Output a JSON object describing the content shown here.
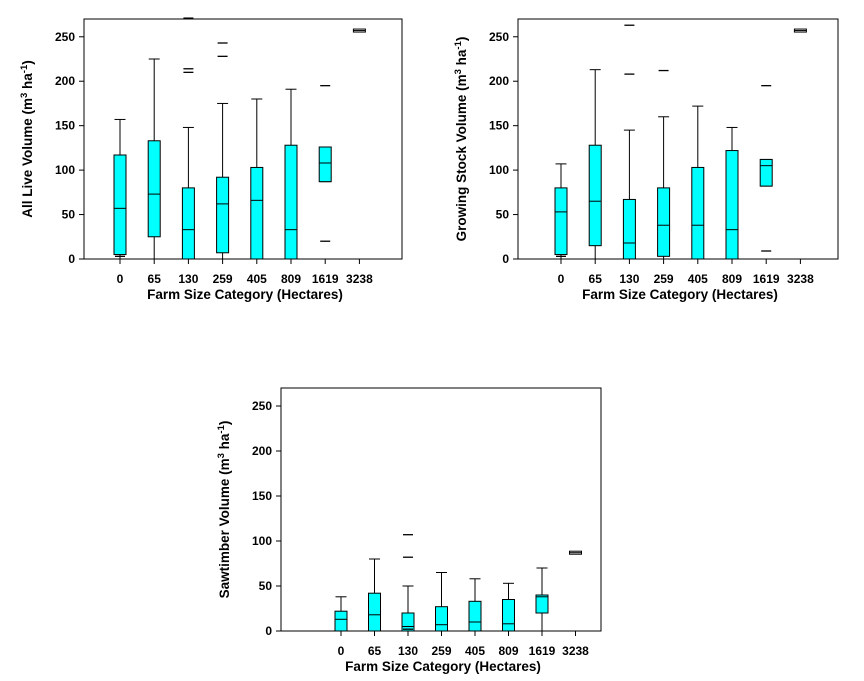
{
  "figure": {
    "xlabel": "Farm Size Category (Hectares)",
    "categories": [
      "0",
      "65",
      "130",
      "259",
      "405",
      "809",
      "1619",
      "3238"
    ],
    "ylim": [
      0,
      270
    ],
    "yticks": [
      0,
      50,
      100,
      150,
      200,
      250
    ],
    "box_color": "#00ffff"
  },
  "chart_data": [
    {
      "type": "box",
      "ylabel_main": "All Live Volume (m",
      "ylabel_sup1": "3",
      "ylabel_mid": " ha",
      "ylabel_sup2": "-1",
      "ylabel_end": ")",
      "ylim": [
        0,
        270
      ],
      "boxes": [
        {
          "category": "0",
          "min": 0,
          "q1": 5,
          "median": 57,
          "q3": 117,
          "max": 157,
          "outliers": [
            3
          ]
        },
        {
          "category": "65",
          "min": 0,
          "q1": 25,
          "median": 73,
          "q3": 133,
          "max": 225,
          "outliers": []
        },
        {
          "category": "130",
          "min": 0,
          "q1": 0,
          "median": 33,
          "q3": 80,
          "max": 148,
          "outliers": [
            210,
            214,
            271
          ]
        },
        {
          "category": "259",
          "min": 0,
          "q1": 7,
          "median": 62,
          "q3": 92,
          "max": 175,
          "outliers": [
            228,
            243
          ]
        },
        {
          "category": "405",
          "min": 0,
          "q1": 0,
          "median": 66,
          "q3": 103,
          "max": 180,
          "outliers": []
        },
        {
          "category": "809",
          "min": 0,
          "q1": 0,
          "median": 33,
          "q3": 128,
          "max": 191,
          "outliers": []
        },
        {
          "category": "1619",
          "min": 87,
          "q1": 87,
          "median": 108,
          "q3": 126,
          "max": 126,
          "outliers": [
            20,
            195
          ]
        },
        {
          "category": "3238",
          "min": 257,
          "q1": 257,
          "median": 257,
          "q3": 257,
          "max": 257,
          "outliers": []
        }
      ]
    },
    {
      "type": "box",
      "ylabel_main": "Growing Stock Volume (m",
      "ylabel_sup1": "3",
      "ylabel_mid": " ha",
      "ylabel_sup2": "-1",
      "ylabel_end": ")",
      "ylim": [
        0,
        270
      ],
      "boxes": [
        {
          "category": "0",
          "min": 0,
          "q1": 5,
          "median": 53,
          "q3": 80,
          "max": 107,
          "outliers": [
            3
          ]
        },
        {
          "category": "65",
          "min": 0,
          "q1": 15,
          "median": 65,
          "q3": 128,
          "max": 213,
          "outliers": []
        },
        {
          "category": "130",
          "min": 0,
          "q1": 0,
          "median": 18,
          "q3": 67,
          "max": 145,
          "outliers": [
            208,
            263
          ]
        },
        {
          "category": "259",
          "min": 0,
          "q1": 3,
          "median": 38,
          "q3": 80,
          "max": 160,
          "outliers": [
            212
          ]
        },
        {
          "category": "405",
          "min": 0,
          "q1": 0,
          "median": 38,
          "q3": 103,
          "max": 172,
          "outliers": []
        },
        {
          "category": "809",
          "min": 0,
          "q1": 0,
          "median": 33,
          "q3": 122,
          "max": 148,
          "outliers": []
        },
        {
          "category": "1619",
          "min": 82,
          "q1": 82,
          "median": 105,
          "q3": 112,
          "max": 112,
          "outliers": [
            9,
            195
          ]
        },
        {
          "category": "3238",
          "min": 257,
          "q1": 257,
          "median": 257,
          "q3": 257,
          "max": 257,
          "outliers": []
        }
      ]
    },
    {
      "type": "box",
      "ylabel_main": "Sawtimber Volume (m",
      "ylabel_sup1": "3",
      "ylabel_mid": " ha",
      "ylabel_sup2": "-1",
      "ylabel_end": ")",
      "ylim": [
        0,
        270
      ],
      "boxes": [
        {
          "category": "0",
          "min": 0,
          "q1": 0,
          "median": 13,
          "q3": 22,
          "max": 38,
          "outliers": []
        },
        {
          "category": "65",
          "min": 0,
          "q1": 0,
          "median": 18,
          "q3": 42,
          "max": 80,
          "outliers": []
        },
        {
          "category": "130",
          "min": 0,
          "q1": 0,
          "median": 5,
          "q3": 20,
          "max": 50,
          "outliers": [
            2,
            82,
            107
          ]
        },
        {
          "category": "259",
          "min": 0,
          "q1": 0,
          "median": 7,
          "q3": 27,
          "max": 65,
          "outliers": []
        },
        {
          "category": "405",
          "min": 0,
          "q1": 0,
          "median": 10,
          "q3": 33,
          "max": 58,
          "outliers": []
        },
        {
          "category": "809",
          "min": 0,
          "q1": 0,
          "median": 8,
          "q3": 35,
          "max": 53,
          "outliers": []
        },
        {
          "category": "1619",
          "min": 0,
          "q1": 20,
          "median": 38,
          "q3": 40,
          "max": 70,
          "outliers": []
        },
        {
          "category": "3238",
          "min": 87,
          "q1": 87,
          "median": 87,
          "q3": 87,
          "max": 87,
          "outliers": []
        }
      ]
    }
  ]
}
